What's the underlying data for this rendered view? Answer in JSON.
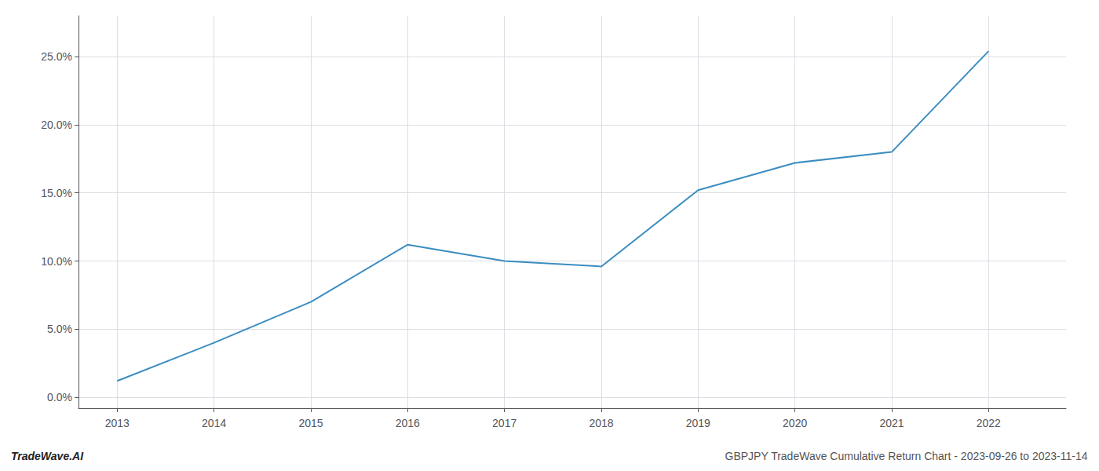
{
  "chart_data": {
    "type": "line",
    "x": [
      2013,
      2014,
      2015,
      2016,
      2017,
      2018,
      2019,
      2020,
      2021,
      2022
    ],
    "values": [
      1.2,
      4.0,
      7.0,
      11.2,
      10.0,
      9.6,
      15.2,
      17.2,
      18.0,
      25.4
    ],
    "color": "#3b8dc0",
    "xlim": [
      2012.6,
      2022.8
    ],
    "ylim": [
      -0.8,
      28.0
    ],
    "xticks": [
      2013,
      2014,
      2015,
      2016,
      2017,
      2018,
      2019,
      2020,
      2021,
      2022
    ],
    "yticks": [
      {
        "value": 0,
        "label": "0.0%"
      },
      {
        "value": 5,
        "label": "5.0%"
      },
      {
        "value": 10,
        "label": "10.0%"
      },
      {
        "value": 15,
        "label": "15.0%"
      },
      {
        "value": 20,
        "label": "20.0%"
      },
      {
        "value": 25,
        "label": "25.0%"
      }
    ],
    "grid": true,
    "annotations": [
      "TradeWave.AI",
      "GBPJPY TradeWave Cumulative Return Chart - 2023-09-26 to 2023-11-14"
    ]
  }
}
